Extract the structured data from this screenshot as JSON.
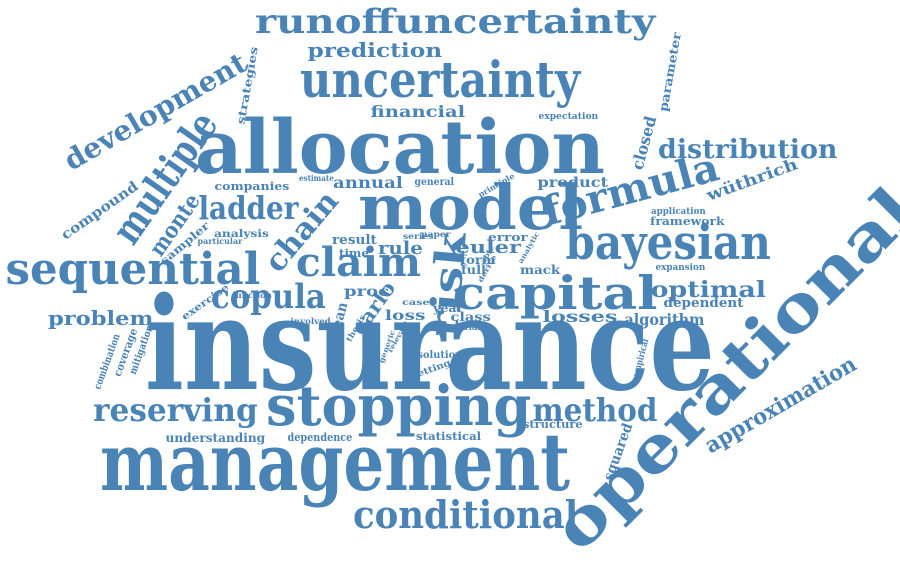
{
  "color": "#4a83b5",
  "words": [
    {
      "text": "insurance",
      "size": 128
    },
    {
      "text": "management",
      "size": 80
    },
    {
      "text": "allocation",
      "size": 74
    },
    {
      "text": "operational",
      "size": 64
    },
    {
      "text": "model",
      "size": 62
    },
    {
      "text": "stopping",
      "size": 55
    },
    {
      "text": "uncertainty",
      "size": 50
    },
    {
      "text": "bayesian",
      "size": 48
    },
    {
      "text": "capital",
      "size": 46
    },
    {
      "text": "sequential",
      "size": 44
    },
    {
      "text": "runoffuncertainty",
      "size": 34
    },
    {
      "text": "multiple",
      "size": 40
    },
    {
      "text": "formula",
      "size": 40
    },
    {
      "text": "conditional",
      "size": 38
    },
    {
      "text": "risk",
      "size": 40
    },
    {
      "text": "claim",
      "size": 40
    },
    {
      "text": "copula",
      "size": 34
    },
    {
      "text": "reserving",
      "size": 32
    },
    {
      "text": "method",
      "size": 32
    },
    {
      "text": "ladder",
      "size": 32
    },
    {
      "text": "development",
      "size": 28
    },
    {
      "text": "chain",
      "size": 30
    },
    {
      "text": "distribution",
      "size": 26
    },
    {
      "text": "approximation",
      "size": 22
    },
    {
      "text": "optimal",
      "size": 22
    },
    {
      "text": "monte",
      "size": 22
    },
    {
      "text": "prediction",
      "size": 20
    },
    {
      "text": "problem",
      "size": 20
    },
    {
      "text": "carlo",
      "size": 20
    },
    {
      "text": "euler",
      "size": 18
    },
    {
      "text": "algorithm",
      "size": 16
    },
    {
      "text": "losses",
      "size": 16
    },
    {
      "text": "financial",
      "size": 16
    },
    {
      "text": "annual",
      "size": 16
    },
    {
      "text": "product",
      "size": 14
    },
    {
      "text": "wüthrich",
      "size": 16
    },
    {
      "text": "compound",
      "size": 14
    },
    {
      "text": "closed",
      "size": 16
    },
    {
      "text": "squared",
      "size": 14
    },
    {
      "text": "dependent",
      "size": 13
    },
    {
      "text": "rule",
      "size": 18
    },
    {
      "text": "proc",
      "size": 14
    },
    {
      "text": "mean",
      "size": 14
    },
    {
      "text": "loss",
      "size": 14
    },
    {
      "text": "result",
      "size": 13
    },
    {
      "text": "class",
      "size": 12
    },
    {
      "text": "understanding",
      "size": 12
    },
    {
      "text": "dependence",
      "size": 11
    },
    {
      "text": "statistical",
      "size": 11
    },
    {
      "text": "structure",
      "size": 11
    },
    {
      "text": "strategies",
      "size": 11
    },
    {
      "text": "parameter",
      "size": 12
    },
    {
      "text": "companies",
      "size": 11
    },
    {
      "text": "framework",
      "size": 11
    },
    {
      "text": "analysis",
      "size": 10
    },
    {
      "text": "sampler",
      "size": 11
    },
    {
      "text": "exercise",
      "size": 10
    },
    {
      "text": "coverage",
      "size": 11
    },
    {
      "text": "mitigation",
      "size": 10
    },
    {
      "text": "combination",
      "size": 10
    },
    {
      "text": "solution",
      "size": 10
    },
    {
      "text": "setting",
      "size": 9
    },
    {
      "text": "empirical",
      "size": 9
    },
    {
      "text": "expansion",
      "size": 9
    },
    {
      "text": "application",
      "size": 9
    },
    {
      "text": "expectation",
      "size": 9
    },
    {
      "text": "mack",
      "size": 12
    },
    {
      "text": "form",
      "size": 12
    },
    {
      "text": "error",
      "size": 11
    },
    {
      "text": "full",
      "size": 12
    },
    {
      "text": "year",
      "size": 11
    },
    {
      "text": "time",
      "size": 11
    },
    {
      "text": "general",
      "size": 10
    },
    {
      "text": "estimate",
      "size": 8
    },
    {
      "text": "particular",
      "size": 8
    },
    {
      "text": "function",
      "size": 8
    },
    {
      "text": "involved",
      "size": 8
    },
    {
      "text": "thesis",
      "size": 8
    },
    {
      "text": "series",
      "size": 8
    },
    {
      "text": "paper",
      "size": 8
    },
    {
      "text": "principle",
      "size": 8
    },
    {
      "text": "case",
      "size": 8
    },
    {
      "text": "relevant",
      "size": 7
    },
    {
      "text": "generic",
      "size": 7
    },
    {
      "text": "analytic",
      "size": 7
    },
    {
      "text": "derive",
      "size": 7
    },
    {
      "text": "variance",
      "size": 8
    },
    {
      "text": "able",
      "size": 7
    }
  ]
}
